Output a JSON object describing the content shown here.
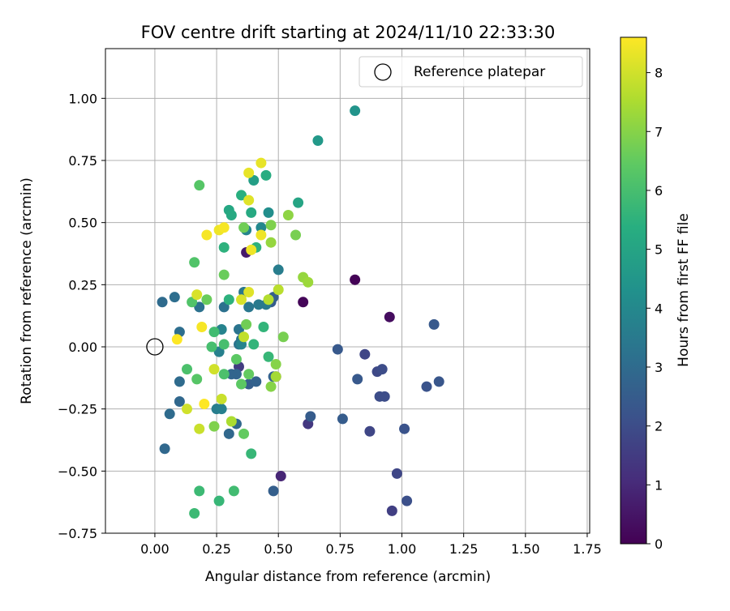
{
  "chart_data": {
    "type": "scatter",
    "title": "FOV centre drift starting at 2024/11/10 22:33:30",
    "xlabel": "Angular distance from reference (arcmin)",
    "ylabel": "Rotation from reference (arcmin)",
    "xlim": [
      -0.2,
      1.76
    ],
    "ylim": [
      -0.75,
      1.2
    ],
    "x_ticks": [
      0.0,
      0.25,
      0.5,
      0.75,
      1.0,
      1.25,
      1.5,
      1.75
    ],
    "x_tick_labels": [
      "0.00",
      "0.25",
      "0.50",
      "0.75",
      "1.00",
      "1.25",
      "1.50",
      "1.75"
    ],
    "y_ticks": [
      -0.75,
      -0.5,
      -0.25,
      0.0,
      0.25,
      0.5,
      0.75,
      1.0
    ],
    "y_tick_labels": [
      "−0.75",
      "−0.50",
      "−0.25",
      "0.00",
      "0.25",
      "0.50",
      "0.75",
      "1.00"
    ],
    "grid": true,
    "legend": {
      "position": "top-right",
      "label": "Reference platepar"
    },
    "reference_point": {
      "x": 0.0,
      "y": 0.0
    },
    "colorbar": {
      "label": "Hours from first FF file",
      "colormap": "viridis",
      "range": [
        0,
        8.6
      ],
      "ticks": [
        0,
        1,
        2,
        3,
        4,
        5,
        6,
        7,
        8
      ],
      "tick_labels": [
        "0",
        "1",
        "2",
        "3",
        "4",
        "5",
        "6",
        "7",
        "8"
      ]
    },
    "points": [
      {
        "x": 0.6,
        "y": 0.18,
        "c": 0.1
      },
      {
        "x": 0.81,
        "y": 0.27,
        "c": 0.05
      },
      {
        "x": 0.95,
        "y": 0.12,
        "c": 0.3
      },
      {
        "x": 0.49,
        "y": -0.12,
        "c": 0.3
      },
      {
        "x": 0.51,
        "y": -0.52,
        "c": 0.9
      },
      {
        "x": 0.37,
        "y": 0.38,
        "c": 0.6
      },
      {
        "x": 0.62,
        "y": -0.31,
        "c": 1.4
      },
      {
        "x": 0.34,
        "y": -0.08,
        "c": 1.5
      },
      {
        "x": 0.96,
        "y": -0.66,
        "c": 1.6
      },
      {
        "x": 0.87,
        "y": -0.34,
        "c": 1.8
      },
      {
        "x": 0.85,
        "y": -0.03,
        "c": 1.8
      },
      {
        "x": 0.98,
        "y": -0.51,
        "c": 1.8
      },
      {
        "x": 0.9,
        "y": -0.1,
        "c": 1.9
      },
      {
        "x": 0.92,
        "y": -0.09,
        "c": 2.0
      },
      {
        "x": 0.91,
        "y": -0.2,
        "c": 2.0
      },
      {
        "x": 0.93,
        "y": -0.2,
        "c": 2.0
      },
      {
        "x": 1.01,
        "y": -0.33,
        "c": 2.2
      },
      {
        "x": 1.02,
        "y": -0.62,
        "c": 2.1
      },
      {
        "x": 1.1,
        "y": -0.16,
        "c": 2.2
      },
      {
        "x": 1.15,
        "y": -0.14,
        "c": 2.3
      },
      {
        "x": 1.13,
        "y": 0.09,
        "c": 2.4
      },
      {
        "x": 0.74,
        "y": -0.01,
        "c": 2.4
      },
      {
        "x": 0.76,
        "y": -0.29,
        "c": 2.5
      },
      {
        "x": 0.82,
        "y": -0.13,
        "c": 2.4
      },
      {
        "x": 0.63,
        "y": -0.28,
        "c": 2.5
      },
      {
        "x": 0.48,
        "y": -0.58,
        "c": 2.6
      },
      {
        "x": 0.47,
        "y": 0.18,
        "c": 2.5
      },
      {
        "x": 0.48,
        "y": 0.2,
        "c": 2.6
      },
      {
        "x": 0.48,
        "y": -0.12,
        "c": 2.7
      },
      {
        "x": 0.38,
        "y": -0.15,
        "c": 2.6
      },
      {
        "x": 0.41,
        "y": -0.14,
        "c": 2.7
      },
      {
        "x": 0.33,
        "y": -0.11,
        "c": 2.8
      },
      {
        "x": 0.31,
        "y": -0.11,
        "c": 2.8
      },
      {
        "x": 0.3,
        "y": -0.35,
        "c": 2.9
      },
      {
        "x": 0.33,
        "y": -0.31,
        "c": 2.9
      },
      {
        "x": 0.04,
        "y": -0.41,
        "c": 2.9
      },
      {
        "x": 0.06,
        "y": -0.27,
        "c": 3.0
      },
      {
        "x": 0.1,
        "y": -0.22,
        "c": 2.9
      },
      {
        "x": 0.1,
        "y": -0.14,
        "c": 3.0
      },
      {
        "x": 0.03,
        "y": 0.18,
        "c": 3.0
      },
      {
        "x": 0.08,
        "y": 0.2,
        "c": 3.1
      },
      {
        "x": 0.1,
        "y": 0.06,
        "c": 3.1
      },
      {
        "x": 0.18,
        "y": 0.16,
        "c": 3.2
      },
      {
        "x": 0.28,
        "y": 0.16,
        "c": 3.2
      },
      {
        "x": 0.34,
        "y": 0.07,
        "c": 3.3
      },
      {
        "x": 0.34,
        "y": 0.01,
        "c": 3.3
      },
      {
        "x": 0.35,
        "y": 0.03,
        "c": 3.3
      },
      {
        "x": 0.36,
        "y": 0.22,
        "c": 3.4
      },
      {
        "x": 0.38,
        "y": 0.16,
        "c": 3.4
      },
      {
        "x": 0.42,
        "y": 0.17,
        "c": 3.5
      },
      {
        "x": 0.45,
        "y": 0.17,
        "c": 3.5
      },
      {
        "x": 0.5,
        "y": 0.31,
        "c": 3.6
      },
      {
        "x": 0.25,
        "y": -0.25,
        "c": 3.6
      },
      {
        "x": 0.27,
        "y": -0.25,
        "c": 3.7
      },
      {
        "x": 0.26,
        "y": -0.02,
        "c": 3.7
      },
      {
        "x": 0.27,
        "y": 0.07,
        "c": 3.8
      },
      {
        "x": 0.35,
        "y": 0.01,
        "c": 3.8
      },
      {
        "x": 0.37,
        "y": 0.47,
        "c": 3.9
      },
      {
        "x": 0.43,
        "y": 0.48,
        "c": 4.0
      },
      {
        "x": 0.46,
        "y": 0.54,
        "c": 4.2
      },
      {
        "x": 0.81,
        "y": 0.95,
        "c": 4.4
      },
      {
        "x": 0.66,
        "y": 0.83,
        "c": 4.6
      },
      {
        "x": 0.4,
        "y": 0.67,
        "c": 4.8
      },
      {
        "x": 0.58,
        "y": 0.58,
        "c": 5.0
      },
      {
        "x": 0.3,
        "y": 0.55,
        "c": 5.1
      },
      {
        "x": 0.31,
        "y": 0.53,
        "c": 5.2
      },
      {
        "x": 0.39,
        "y": 0.54,
        "c": 5.2
      },
      {
        "x": 0.45,
        "y": 0.69,
        "c": 5.3
      },
      {
        "x": 0.35,
        "y": 0.61,
        "c": 5.4
      },
      {
        "x": 0.41,
        "y": 0.4,
        "c": 5.5
      },
      {
        "x": 0.28,
        "y": 0.4,
        "c": 5.5
      },
      {
        "x": 0.3,
        "y": 0.19,
        "c": 5.5
      },
      {
        "x": 0.4,
        "y": 0.01,
        "c": 5.6
      },
      {
        "x": 0.44,
        "y": 0.08,
        "c": 5.6
      },
      {
        "x": 0.46,
        "y": -0.04,
        "c": 5.7
      },
      {
        "x": 0.39,
        "y": -0.43,
        "c": 5.7
      },
      {
        "x": 0.26,
        "y": -0.62,
        "c": 5.7
      },
      {
        "x": 0.16,
        "y": -0.67,
        "c": 5.8
      },
      {
        "x": 0.18,
        "y": -0.58,
        "c": 5.8
      },
      {
        "x": 0.32,
        "y": -0.58,
        "c": 5.9
      },
      {
        "x": 0.24,
        "y": 0.06,
        "c": 5.9
      },
      {
        "x": 0.23,
        "y": 0.0,
        "c": 6.0
      },
      {
        "x": 0.28,
        "y": 0.01,
        "c": 6.0
      },
      {
        "x": 0.28,
        "y": -0.11,
        "c": 6.1
      },
      {
        "x": 0.13,
        "y": -0.09,
        "c": 6.1
      },
      {
        "x": 0.15,
        "y": 0.18,
        "c": 6.2
      },
      {
        "x": 0.16,
        "y": 0.34,
        "c": 6.2
      },
      {
        "x": 0.18,
        "y": 0.65,
        "c": 6.3
      },
      {
        "x": 0.17,
        "y": -0.13,
        "c": 6.3
      },
      {
        "x": 0.33,
        "y": -0.05,
        "c": 6.4
      },
      {
        "x": 0.35,
        "y": -0.15,
        "c": 6.4
      },
      {
        "x": 0.38,
        "y": -0.11,
        "c": 6.5
      },
      {
        "x": 0.36,
        "y": -0.35,
        "c": 6.5
      },
      {
        "x": 0.21,
        "y": 0.19,
        "c": 6.6
      },
      {
        "x": 0.28,
        "y": 0.29,
        "c": 6.6
      },
      {
        "x": 0.36,
        "y": 0.48,
        "c": 6.7
      },
      {
        "x": 0.37,
        "y": 0.09,
        "c": 6.7
      },
      {
        "x": 0.52,
        "y": 0.04,
        "c": 6.8
      },
      {
        "x": 0.57,
        "y": 0.45,
        "c": 6.8
      },
      {
        "x": 0.47,
        "y": 0.49,
        "c": 6.9
      },
      {
        "x": 0.24,
        "y": -0.32,
        "c": 6.9
      },
      {
        "x": 0.47,
        "y": -0.16,
        "c": 7.0
      },
      {
        "x": 0.49,
        "y": -0.07,
        "c": 7.0
      },
      {
        "x": 0.54,
        "y": 0.53,
        "c": 7.1
      },
      {
        "x": 0.47,
        "y": 0.42,
        "c": 7.2
      },
      {
        "x": 0.6,
        "y": 0.28,
        "c": 7.2
      },
      {
        "x": 0.62,
        "y": 0.26,
        "c": 7.3
      },
      {
        "x": 0.49,
        "y": -0.12,
        "c": 7.4
      },
      {
        "x": 0.31,
        "y": -0.3,
        "c": 7.5
      },
      {
        "x": 0.46,
        "y": 0.19,
        "c": 7.6
      },
      {
        "x": 0.5,
        "y": 0.23,
        "c": 7.7
      },
      {
        "x": 0.36,
        "y": 0.04,
        "c": 7.8
      },
      {
        "x": 0.27,
        "y": -0.21,
        "c": 7.9
      },
      {
        "x": 0.24,
        "y": -0.09,
        "c": 8.0
      },
      {
        "x": 0.13,
        "y": -0.25,
        "c": 8.0
      },
      {
        "x": 0.18,
        "y": -0.33,
        "c": 7.9
      },
      {
        "x": 0.17,
        "y": 0.21,
        "c": 8.1
      },
      {
        "x": 0.35,
        "y": 0.19,
        "c": 8.1
      },
      {
        "x": 0.38,
        "y": 0.22,
        "c": 8.2
      },
      {
        "x": 0.38,
        "y": 0.59,
        "c": 8.2
      },
      {
        "x": 0.38,
        "y": 0.7,
        "c": 8.3
      },
      {
        "x": 0.43,
        "y": 0.74,
        "c": 8.3
      },
      {
        "x": 0.43,
        "y": 0.45,
        "c": 8.4
      },
      {
        "x": 0.39,
        "y": 0.39,
        "c": 8.4
      },
      {
        "x": 0.26,
        "y": 0.47,
        "c": 8.4
      },
      {
        "x": 0.28,
        "y": 0.48,
        "c": 8.5
      },
      {
        "x": 0.21,
        "y": 0.45,
        "c": 8.5
      },
      {
        "x": 0.19,
        "y": 0.08,
        "c": 8.5
      },
      {
        "x": 0.09,
        "y": 0.03,
        "c": 8.6
      },
      {
        "x": 0.2,
        "y": -0.23,
        "c": 8.6
      }
    ]
  }
}
